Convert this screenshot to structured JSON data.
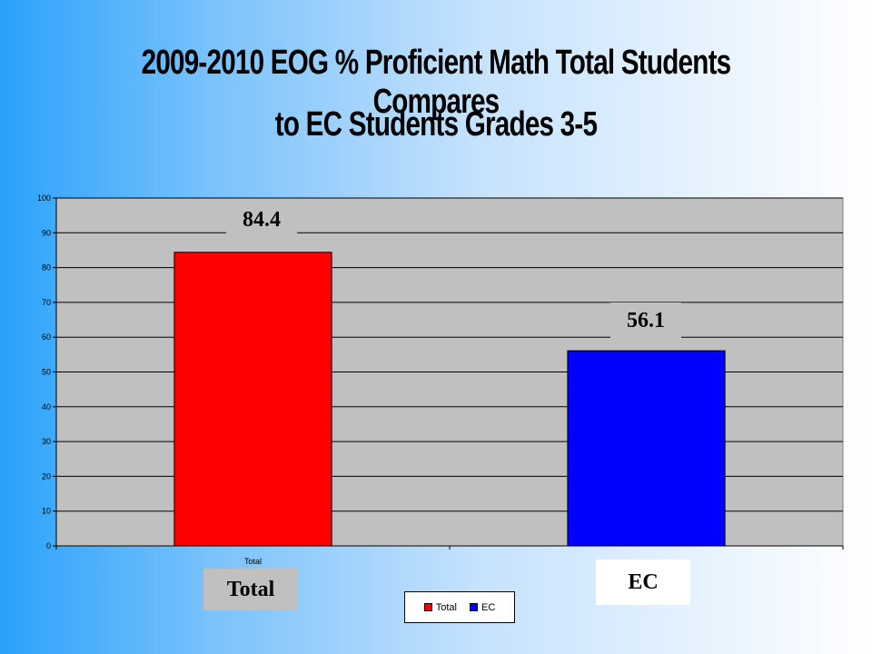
{
  "chart_data": {
    "type": "bar",
    "title_line1": "2009-2010 EOG % Proficient Math Total Students Compares",
    "title_line2": "to EC Students Grades 3-5",
    "categories": [
      "Total",
      "EC"
    ],
    "values": [
      84.4,
      56.1
    ],
    "value_labels": [
      "84.4",
      "56.1"
    ],
    "colors": [
      "#ff0000",
      "#0000ff"
    ],
    "ylim": [
      0,
      100
    ],
    "yticks": [
      "0",
      "10",
      "20",
      "30",
      "40",
      "50",
      "60",
      "70",
      "80",
      "90",
      "100"
    ],
    "grid": true,
    "plot_background": "#c0c0c0",
    "tick_category_label": "Total",
    "category_boxes": [
      "Total",
      "EC"
    ],
    "legend": {
      "position": "bottom",
      "entries": [
        "Total",
        "EC"
      ]
    }
  }
}
